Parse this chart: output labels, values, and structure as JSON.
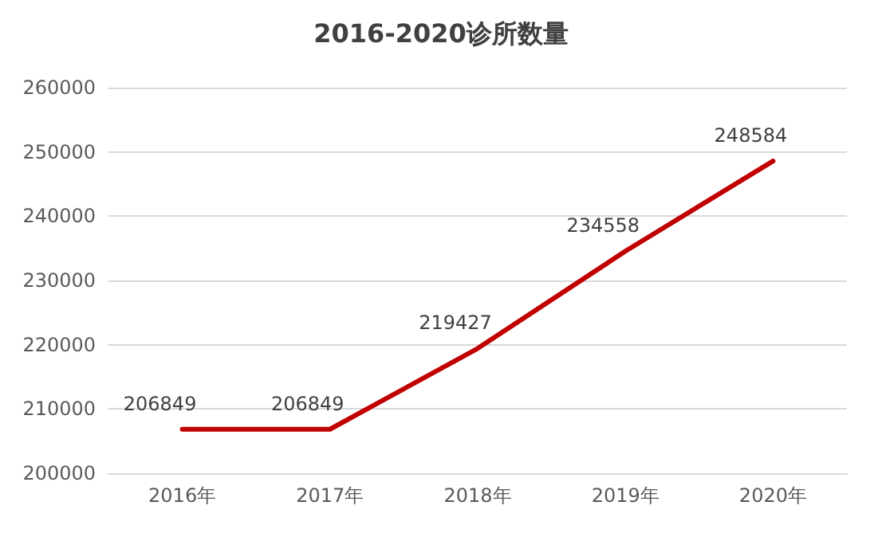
{
  "chart_data": {
    "type": "line",
    "title": "2016-2020诊所数量",
    "categories": [
      "2016年",
      "2017年",
      "2018年",
      "2019年",
      "2020年"
    ],
    "series": [
      {
        "color": "#c00000",
        "values": [
          206849,
          206849,
          219427,
          234558,
          248584
        ]
      }
    ],
    "ylim": [
      200000,
      260000
    ],
    "yticks": [
      200000,
      210000,
      220000,
      230000,
      240000,
      250000,
      260000
    ],
    "grid": "y",
    "data_labels": true,
    "marker": "none",
    "line_style": "solid"
  }
}
